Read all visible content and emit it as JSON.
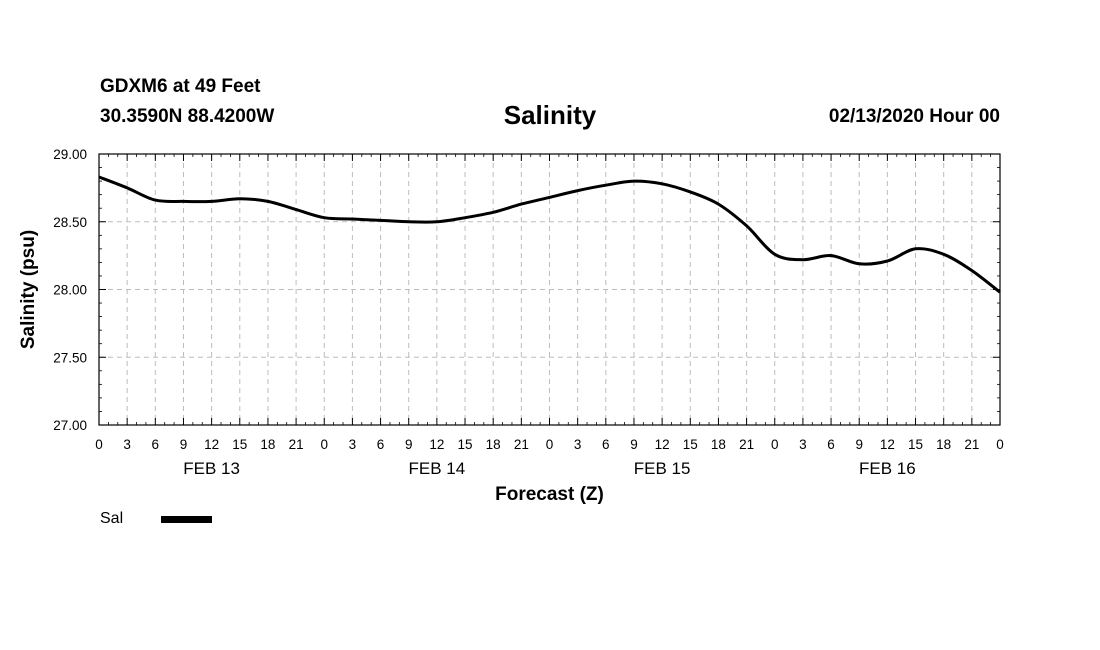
{
  "header": {
    "station": "GDXM6 at 49 Feet",
    "coords": "30.3590N 88.4200W",
    "title": "Salinity",
    "runtime": "02/13/2020 Hour 00"
  },
  "chart_data": {
    "type": "line",
    "title": "Salinity",
    "xlabel": "Forecast (Z)",
    "ylabel": "Salinity (psu)",
    "ylim": [
      27.0,
      29.0
    ],
    "yticks": [
      "27.00",
      "27.50",
      "28.00",
      "28.50",
      "29.00"
    ],
    "xlim": [
      0,
      96
    ],
    "xtick_hours": [
      0,
      3,
      6,
      9,
      12,
      15,
      18,
      21,
      24,
      27,
      30,
      33,
      36,
      39,
      42,
      45,
      48,
      51,
      54,
      57,
      60,
      63,
      66,
      69,
      72,
      75,
      78,
      81,
      84,
      87,
      90,
      93,
      96
    ],
    "xtick_labels": [
      "0",
      "3",
      "6",
      "9",
      "12",
      "15",
      "18",
      "21",
      "0",
      "3",
      "6",
      "9",
      "12",
      "15",
      "18",
      "21",
      "0",
      "3",
      "6",
      "9",
      "12",
      "15",
      "18",
      "21",
      "0",
      "3",
      "6",
      "9",
      "12",
      "15",
      "18",
      "21",
      "0"
    ],
    "date_labels": [
      {
        "text": "FEB 13",
        "hour": 12
      },
      {
        "text": "FEB 14",
        "hour": 36
      },
      {
        "text": "FEB 15",
        "hour": 60
      },
      {
        "text": "FEB 16",
        "hour": 84
      }
    ],
    "grid": true,
    "legend_position": "bottom-left",
    "series": [
      {
        "name": "Sal",
        "color": "#000000",
        "x": [
          0,
          3,
          6,
          9,
          12,
          15,
          18,
          21,
          24,
          27,
          30,
          33,
          36,
          39,
          42,
          45,
          48,
          51,
          54,
          57,
          60,
          63,
          66,
          69,
          72,
          75,
          78,
          81,
          84,
          87,
          90,
          93,
          96
        ],
        "values": [
          28.83,
          28.75,
          28.66,
          28.65,
          28.65,
          28.67,
          28.65,
          28.59,
          28.53,
          28.52,
          28.51,
          28.5,
          28.5,
          28.53,
          28.57,
          28.63,
          28.68,
          28.73,
          28.77,
          28.8,
          28.78,
          28.72,
          28.63,
          28.47,
          28.26,
          28.22,
          28.25,
          28.19,
          28.21,
          28.3,
          28.26,
          28.14,
          27.98
        ]
      }
    ]
  }
}
